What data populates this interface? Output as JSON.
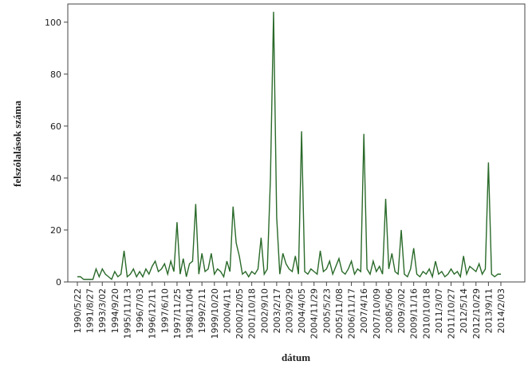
{
  "chart_data": {
    "type": "line",
    "x_label": "dátum",
    "y_label": "felszólalások száma",
    "color": "#2a6a2a",
    "ylim": [
      0,
      107
    ],
    "yticks": [
      0,
      20,
      40,
      60,
      80,
      100
    ],
    "categories": [
      "1990/5/22",
      null,
      null,
      null,
      "1991/8/27",
      null,
      null,
      null,
      "1993/3/02",
      null,
      null,
      null,
      "1994/9/20",
      null,
      null,
      null,
      "1995/11/13",
      null,
      null,
      null,
      "1996/7/03",
      null,
      null,
      null,
      "1996/12/11",
      null,
      null,
      null,
      "1997/6/10",
      null,
      null,
      null,
      "1997/11/25",
      null,
      null,
      null,
      "1998/11/04",
      null,
      null,
      null,
      "1999/2/11",
      null,
      null,
      null,
      "1999/10/20",
      null,
      null,
      null,
      "2000/4/11",
      null,
      null,
      null,
      "2000/12/05",
      null,
      null,
      null,
      "2001/10/18",
      null,
      null,
      null,
      "2002/9/10",
      null,
      null,
      null,
      "2003/2/17",
      null,
      null,
      null,
      "2003/9/29",
      null,
      null,
      null,
      "2004/4/05",
      null,
      null,
      null,
      "2004/11/29",
      null,
      null,
      null,
      "2005/5/23",
      null,
      null,
      null,
      "2005/11/08",
      null,
      null,
      null,
      "2006/11/17",
      null,
      null,
      null,
      "2007/4/16",
      null,
      null,
      null,
      "2007/10/09",
      null,
      null,
      null,
      "2008/5/06",
      null,
      null,
      null,
      "2009/3/02",
      null,
      null,
      null,
      "2009/11/16",
      null,
      null,
      null,
      "2010/10/18",
      null,
      null,
      null,
      "2011/3/07",
      null,
      null,
      null,
      "2011/10/27",
      null,
      null,
      null,
      "2012/5/14",
      null,
      null,
      null,
      "2012/10/29",
      null,
      null,
      null,
      "2013/9/11",
      null,
      null,
      null,
      "2014/2/03"
    ],
    "values": [
      2,
      2,
      1,
      1,
      1,
      1,
      5,
      2,
      5,
      3,
      2,
      1,
      4,
      2,
      3,
      12,
      2,
      3,
      5,
      2,
      4,
      2,
      5,
      3,
      6,
      8,
      4,
      5,
      7,
      3,
      8,
      4,
      23,
      3,
      9,
      2,
      7,
      8,
      30,
      3,
      11,
      4,
      5,
      11,
      3,
      5,
      4,
      2,
      8,
      4,
      29,
      15,
      10,
      3,
      4,
      2,
      4,
      3,
      5,
      17,
      3,
      5,
      40,
      104,
      25,
      3,
      11,
      7,
      5,
      4,
      10,
      3,
      58,
      4,
      3,
      5,
      4,
      3,
      12,
      4,
      5,
      8,
      3,
      6,
      9,
      4,
      3,
      5,
      8,
      3,
      5,
      4,
      57,
      5,
      3,
      8,
      4,
      6,
      3,
      32,
      5,
      11,
      4,
      3,
      20,
      3,
      2,
      5,
      13,
      3,
      2,
      4,
      3,
      5,
      2,
      8,
      3,
      4,
      2,
      3,
      5,
      3,
      4,
      2,
      10,
      3,
      6,
      5,
      4,
      7,
      3,
      5,
      46,
      3,
      2,
      3,
      3
    ]
  }
}
